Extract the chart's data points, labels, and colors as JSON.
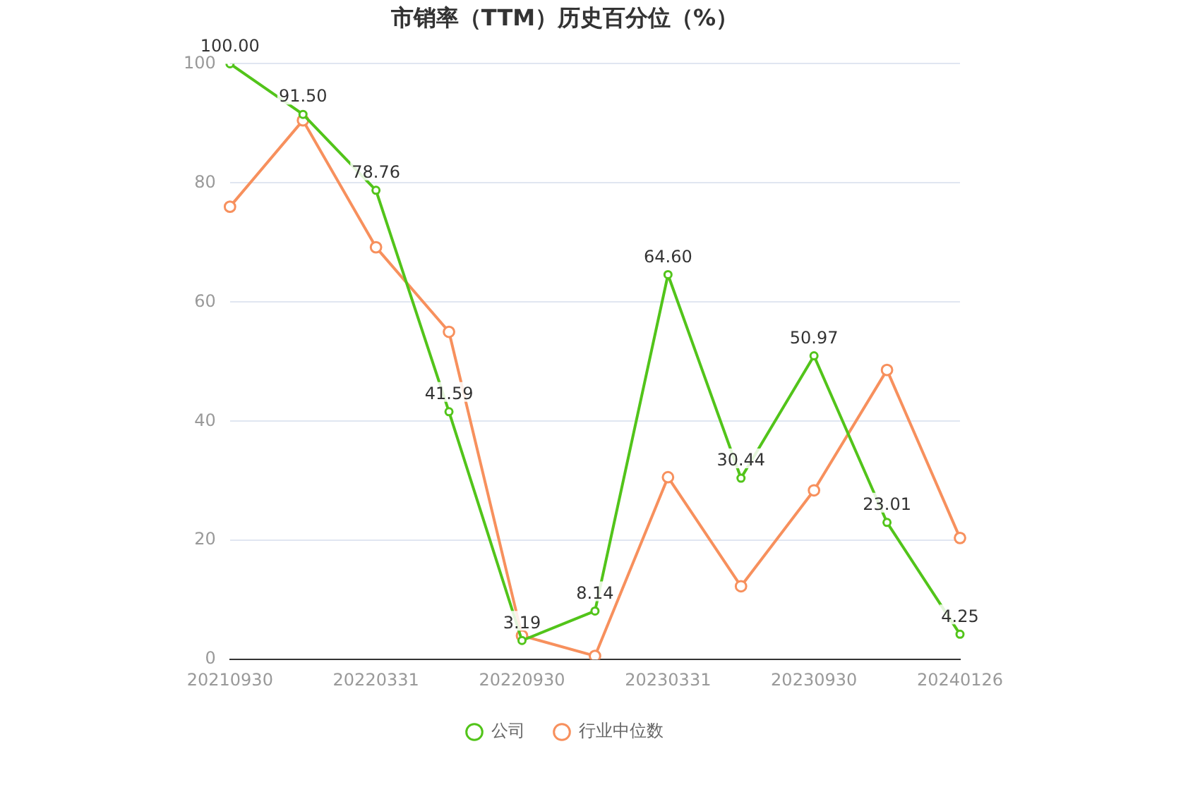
{
  "chart_data": {
    "type": "line",
    "title": "市销率（TTM）历史百分位（%）",
    "categories": [
      "20210930",
      null,
      "20220331",
      null,
      "20220930",
      null,
      "20230331",
      null,
      "20230930",
      null,
      "20240126"
    ],
    "series": [
      {
        "name": "公司",
        "color": "#52c41a",
        "values": [
          100.0,
          91.5,
          78.76,
          41.59,
          3.19,
          8.14,
          64.6,
          30.44,
          50.97,
          23.01,
          4.25
        ],
        "value_labels": [
          "100.00",
          "91.50",
          "78.76",
          "41.59",
          "3.19",
          "8.14",
          "64.60",
          "30.44",
          "50.97",
          "23.01",
          "4.25"
        ]
      },
      {
        "name": "行业中位数",
        "color": "#f7905d",
        "values": [
          76,
          90.5,
          69.2,
          55,
          4,
          0.6,
          30.6,
          12.3,
          28.4,
          48.6,
          20.4
        ]
      }
    ],
    "ylim": [
      0,
      100
    ],
    "yticks": [
      0,
      20,
      40,
      60,
      80,
      100
    ],
    "grid": "y",
    "legend": "bottom",
    "marker": "circle",
    "line_style": "solid"
  }
}
